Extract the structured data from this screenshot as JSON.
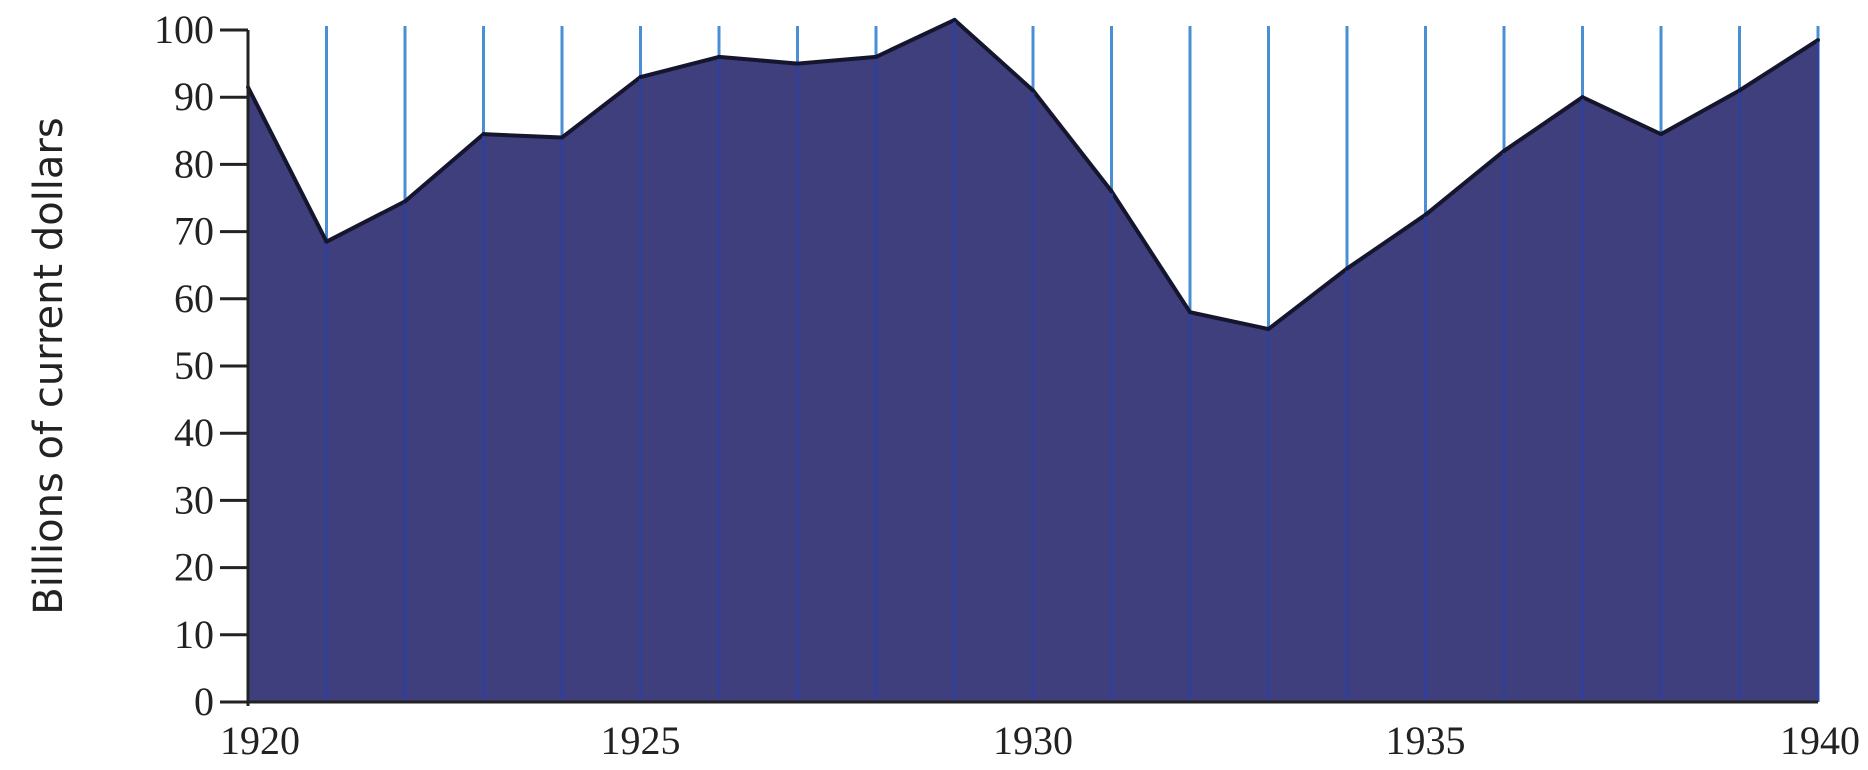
{
  "chart_data": {
    "type": "area",
    "title": "",
    "xlabel": "",
    "ylabel": "Billions of current dollars",
    "x": [
      1920,
      1921,
      1922,
      1923,
      1924,
      1925,
      1926,
      1927,
      1928,
      1929,
      1930,
      1931,
      1932,
      1933,
      1934,
      1935,
      1936,
      1937,
      1938,
      1939,
      1940
    ],
    "series": [
      {
        "values": [
          91.5,
          68.5,
          74.5,
          84.5,
          84,
          93,
          96,
          95,
          96,
          101.5,
          91,
          76,
          58,
          55.5,
          64.5,
          72.5,
          82,
          90,
          84.5,
          91,
          98.5
        ]
      }
    ],
    "xlim": [
      1920,
      1940
    ],
    "ylim": [
      0,
      100
    ],
    "xticks": [
      1920,
      1925,
      1930,
      1935,
      1940
    ],
    "yticks": [
      0,
      10,
      20,
      30,
      40,
      50,
      60,
      70,
      80,
      90,
      100
    ],
    "xtick_labels": [
      "1920",
      "1925",
      "1930",
      "1935",
      "1940"
    ],
    "ytick_labels": [
      "0",
      "10",
      "20",
      "30",
      "40",
      "50",
      "60",
      "70",
      "80",
      "90",
      "100"
    ],
    "grid": "vertical lines at every year",
    "legend": "none",
    "colors": {
      "fill": "#3f3f7d",
      "outline": "#15152e",
      "gridline": "#4a8fd6",
      "axis": "#222222",
      "background": "#ffffff"
    }
  }
}
